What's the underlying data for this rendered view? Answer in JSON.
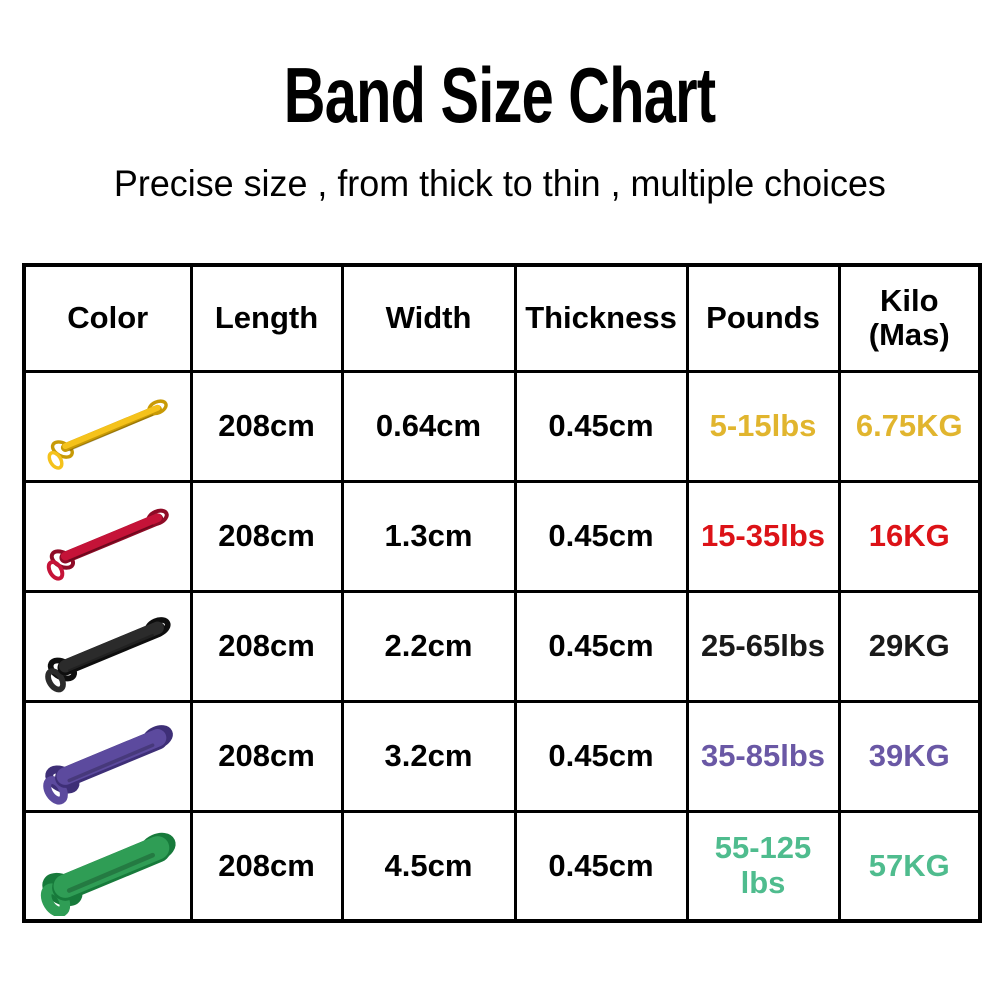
{
  "page": {
    "title": "Band Size Chart",
    "subtitle": "Precise size , from thick to thin , multiple choices"
  },
  "chart_data": {
    "type": "table",
    "title": "Band Size Chart",
    "subtitle": "Precise size , from thick to thin , multiple choices",
    "columns": {
      "color": "Color",
      "length": "Length",
      "width": "Width",
      "thickness": "Thickness",
      "pounds": "Pounds",
      "kilo_line1": "Kilo",
      "kilo_line2": "(Mas)"
    },
    "rows": [
      {
        "color_name": "yellow",
        "icon": "yellow-band-icon",
        "band_color": "#F5C21B",
        "band_shade": "#C89A06",
        "band_stroke": 6,
        "text_color": "#E1B52E",
        "length": "208cm",
        "width": "0.64cm",
        "thickness": "0.45cm",
        "pounds": "5-15lbs",
        "kilo": "6.75KG"
      },
      {
        "color_name": "red",
        "icon": "red-band-icon",
        "band_color": "#C51338",
        "band_shade": "#8E0B26",
        "band_stroke": 9,
        "text_color": "#DC1217",
        "length": "208cm",
        "width": "1.3cm",
        "thickness": "0.45cm",
        "pounds": "15-35lbs",
        "kilo": "16KG"
      },
      {
        "color_name": "black",
        "icon": "black-band-icon",
        "band_color": "#2B2B2B",
        "band_shade": "#0E0E0E",
        "band_stroke": 13,
        "text_color": "#1A1A1A",
        "length": "208cm",
        "width": "2.2cm",
        "thickness": "0.45cm",
        "pounds": "25-65lbs",
        "kilo": "29KG"
      },
      {
        "color_name": "purple",
        "icon": "purple-band-icon",
        "band_color": "#5C4A9E",
        "band_shade": "#3E2F77",
        "band_stroke": 18,
        "text_color": "#6A58A5",
        "length": "208cm",
        "width": "3.2cm",
        "thickness": "0.45cm",
        "pounds": "35-85lbs",
        "kilo": "39KG"
      },
      {
        "color_name": "green",
        "icon": "green-band-icon",
        "band_color": "#2F9D55",
        "band_shade": "#177A3B",
        "band_stroke": 24,
        "text_color": "#4FBC8E",
        "length": "208cm",
        "width": "4.5cm",
        "thickness": "0.45cm",
        "pounds": "55-125",
        "pounds_line2": "lbs",
        "kilo": "57KG"
      }
    ]
  }
}
